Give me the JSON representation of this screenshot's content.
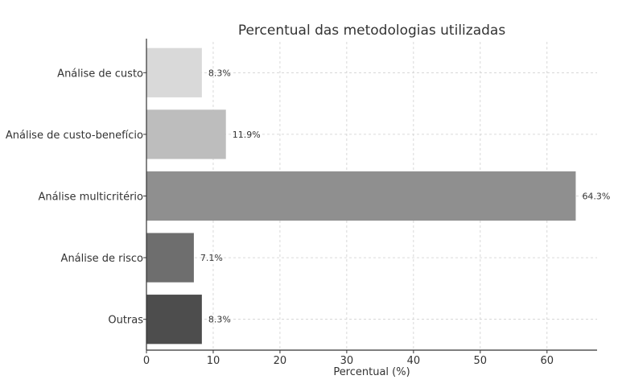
{
  "chart_data": {
    "type": "bar",
    "orientation": "horizontal",
    "title": "Percentual das metodologias utilizadas",
    "xlabel": "Percentual (%)",
    "ylabel": "",
    "xlim": [
      0,
      67.5
    ],
    "xticks": [
      0,
      10,
      20,
      30,
      40,
      50,
      60
    ],
    "grid": true,
    "categories": [
      "Análise de custo",
      "Análise de custo-benefício",
      "Análise multicritério",
      "Análise de risco",
      "Outras"
    ],
    "values": [
      8.3,
      11.9,
      64.3,
      7.1,
      8.3
    ],
    "value_labels": [
      "8.3%",
      "11.9%",
      "64.3%",
      "7.1%",
      "8.3%"
    ],
    "colors": [
      "#d9d9d9",
      "#bdbdbd",
      "#8f8f8f",
      "#6e6e6e",
      "#4d4d4d"
    ]
  }
}
